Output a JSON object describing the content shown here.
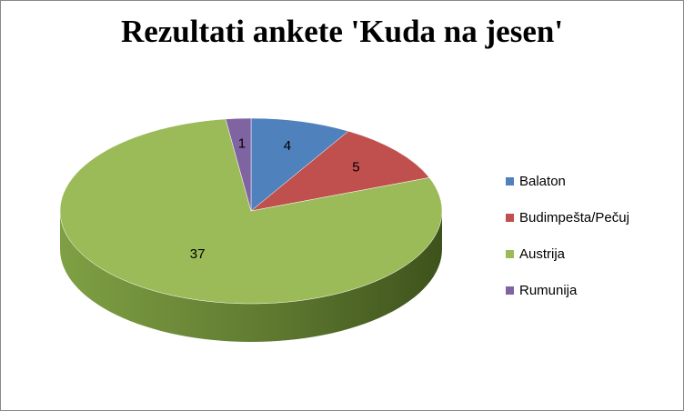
{
  "chart_data": {
    "type": "pie",
    "title": "Rezultati ankete 'Kuda na jesen'",
    "categories": [
      "Balaton",
      "Budimpešta/Pečuj",
      "Austrija",
      "Rumunija"
    ],
    "values": [
      4,
      5,
      37,
      1
    ],
    "colors": [
      "#4F81BD",
      "#C0504D",
      "#9BBB59",
      "#8064A2"
    ],
    "side_colors": [
      "#3C6494",
      "#953E3B",
      "#6E8C3A",
      "#5F4A7A"
    ],
    "legend_placement": "right",
    "data_labels": true,
    "style": "3d"
  }
}
